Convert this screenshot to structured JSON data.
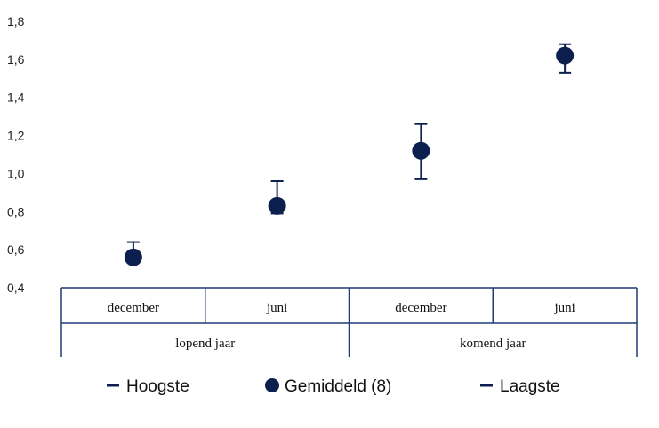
{
  "chart_data": {
    "type": "scatter",
    "title": "",
    "xlabel": "",
    "ylabel": "",
    "ylim": [
      0.4,
      1.8
    ],
    "yticks": [
      "0,4",
      "0,6",
      "0,8",
      "1,0",
      "1,2",
      "1,4",
      "1,6",
      "1,8"
    ],
    "ytick_values": [
      0.4,
      0.6,
      0.8,
      1.0,
      1.2,
      1.4,
      1.6,
      1.8
    ],
    "grid": false,
    "legend_position": "bottom",
    "categories": [
      "december",
      "juni",
      "december",
      "juni"
    ],
    "groups": [
      {
        "label": "lopend jaar",
        "span": [
          0,
          1
        ]
      },
      {
        "label": "komend jaar",
        "span": [
          2,
          3
        ]
      }
    ],
    "series": [
      {
        "name": "Hoogste",
        "values": [
          0.64,
          0.96,
          1.26,
          1.68
        ]
      },
      {
        "name": "Gemiddeld (8)",
        "values": [
          0.56,
          0.83,
          1.12,
          1.62
        ]
      },
      {
        "name": "Laagste",
        "values": [
          0.53,
          0.79,
          0.97,
          1.53
        ]
      }
    ],
    "colors": {
      "marker": "#0d1f4f",
      "axis": "#1f3b7a",
      "whisker": "#0d1f4f"
    }
  },
  "legend": [
    {
      "label": "Hoogste",
      "icon": "dash-icon"
    },
    {
      "label": "Gemiddeld (8)",
      "icon": "circle-icon"
    },
    {
      "label": "Laagste",
      "icon": "dash-icon"
    }
  ]
}
